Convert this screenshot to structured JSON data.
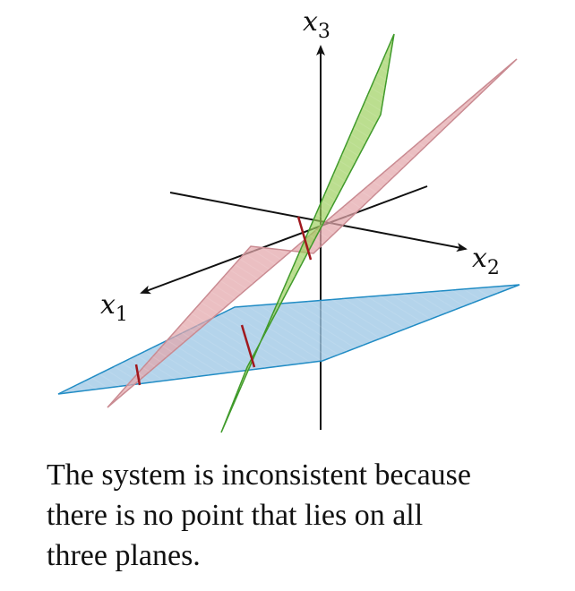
{
  "figure": {
    "axes": [
      {
        "name": "x1",
        "symbol": "x",
        "subscript": "1"
      },
      {
        "name": "x2",
        "symbol": "x",
        "subscript": "2"
      },
      {
        "name": "x3",
        "symbol": "x",
        "subscript": "3"
      }
    ],
    "planes": [
      {
        "name": "blue-plane",
        "fill": "#9fc8e6",
        "stroke": "#1f8bc4"
      },
      {
        "name": "red-plane",
        "fill": "#e3a6aa",
        "stroke": "#c98a91"
      },
      {
        "name": "green-plane",
        "fill": "#9bcf5a",
        "stroke": "#3f9a2a"
      }
    ],
    "intersection_line_color": "#a0181e"
  },
  "caption": {
    "line1": "The system is inconsistent because",
    "line2": "there is no point that lies on all",
    "line3": "three planes."
  }
}
